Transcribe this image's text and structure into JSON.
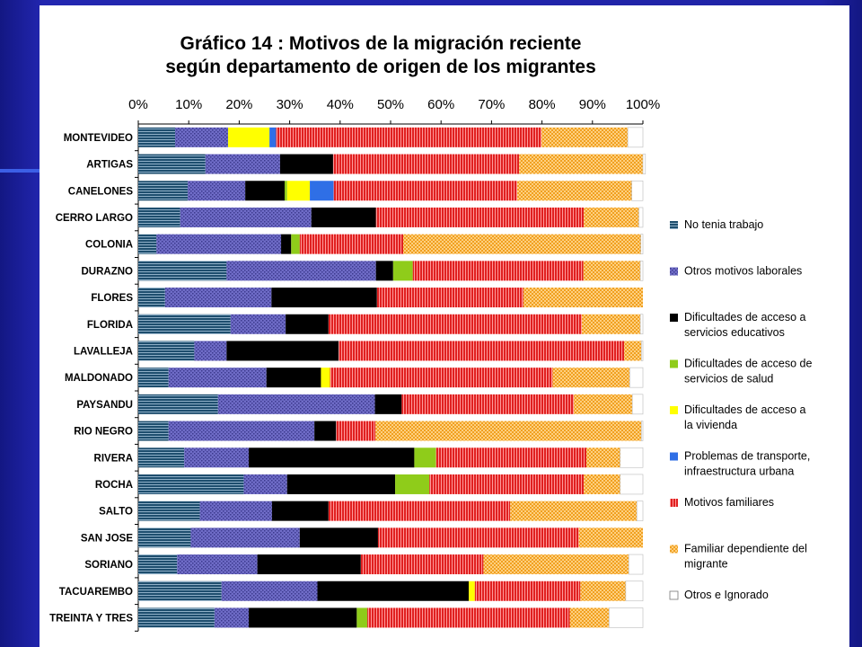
{
  "chart_data": {
    "type": "bar",
    "orientation": "horizontal",
    "stacked": true,
    "title_lines": [
      "Gráfico 14 : Motivos de la migración reciente",
      "según departamento de origen de los migrantes"
    ],
    "xlim": [
      0,
      100
    ],
    "x_ticks": [
      "0%",
      "10%",
      "20%",
      "30%",
      "40%",
      "50%",
      "60%",
      "70%",
      "80%",
      "90%",
      "100%"
    ],
    "legend_position": "right",
    "categories": [
      "MONTEVIDEO",
      "ARTIGAS",
      "CANELONES",
      "CERRO LARGO",
      "COLONIA",
      "DURAZNO",
      "FLORES",
      "FLORIDA",
      "LAVALLEJA",
      "MALDONADO",
      "PAYSANDU",
      "RIO NEGRO",
      "RIVERA",
      "ROCHA",
      "SALTO",
      "SAN JOSE",
      "SORIANO",
      "TACUAREMBO",
      "TREINTA Y TRES"
    ],
    "series": [
      {
        "name": "No tenia trabajo",
        "color": "#1e4e6e",
        "pattern": "hlines",
        "values": [
          7.3,
          13.3,
          9.8,
          8.3,
          3.6,
          17.5,
          5.3,
          18.3,
          11.1,
          6.0,
          15.8,
          6.0,
          9.1,
          20.9,
          12.2,
          10.4,
          7.7,
          16.5,
          15.1
        ]
      },
      {
        "name": "Otros motivos laborales",
        "color": "#6f6cc7",
        "pattern": "dots",
        "values": [
          10.5,
          14.8,
          11.4,
          26.0,
          24.7,
          29.6,
          21.1,
          10.9,
          6.4,
          19.4,
          31.1,
          28.9,
          12.8,
          8.6,
          14.3,
          21.6,
          15.9,
          19.0,
          6.8
        ]
      },
      {
        "name": "Dificultades de acceso a servicios educativos",
        "color": "#000000",
        "pattern": "solid",
        "values": [
          0,
          10.5,
          7.8,
          12.8,
          2.0,
          3.4,
          20.9,
          8.5,
          22.2,
          10.8,
          5.3,
          4.3,
          32.8,
          21.4,
          11.2,
          15.5,
          20.5,
          30.0,
          21.4
        ]
      },
      {
        "name": "Dificultades de acceso de servicios de salud",
        "color": "#8fcc1a",
        "pattern": "solid",
        "values": [
          0,
          0,
          0.5,
          0,
          1.7,
          3.9,
          0,
          0,
          0,
          0,
          0,
          0,
          4.3,
          6.8,
          0,
          0,
          0,
          0,
          2.1
        ]
      },
      {
        "name": "Dificultades de acceso a la vivienda",
        "color": "#ffff00",
        "pattern": "solid",
        "values": [
          8.2,
          0,
          4.5,
          0,
          0,
          0,
          0,
          0,
          0,
          1.8,
          0,
          0,
          0,
          0,
          0,
          0,
          0,
          1.2,
          0
        ]
      },
      {
        "name": "Problemas de transporte, infraestructura urbana",
        "color": "#2f6fe6",
        "pattern": "solid",
        "values": [
          1.3,
          0,
          4.7,
          0,
          0,
          0,
          0,
          0,
          0,
          0,
          0,
          0,
          0,
          0,
          0,
          0,
          0,
          0,
          0
        ]
      },
      {
        "name": "Motivos familiares",
        "color": "#e02020",
        "pattern": "vlines",
        "values": [
          52.6,
          36.9,
          36.4,
          41.2,
          20.5,
          33.8,
          29.0,
          50.2,
          56.6,
          44.1,
          34.1,
          7.8,
          29.8,
          30.6,
          36.0,
          39.8,
          24.3,
          20.9,
          40.1
        ]
      },
      {
        "name": "Familiar dependiente del migrante",
        "color": "#f0a020",
        "pattern": "checker",
        "values": [
          17.1,
          24.5,
          22.7,
          10.9,
          47.1,
          11.3,
          23.7,
          11.6,
          3.4,
          15.3,
          11.6,
          52.7,
          6.7,
          7.2,
          25.1,
          12.7,
          28.8,
          9.0,
          7.8
        ]
      },
      {
        "name": "Otros e Ignorado",
        "color": "#ffffff",
        "pattern": "solid",
        "values": [
          3.0,
          0.5,
          2.2,
          0.8,
          0.4,
          0.5,
          0.0,
          0.5,
          0.3,
          2.6,
          2.1,
          0.3,
          4.5,
          4.5,
          1.2,
          0.0,
          2.8,
          3.4,
          6.7
        ]
      }
    ]
  }
}
